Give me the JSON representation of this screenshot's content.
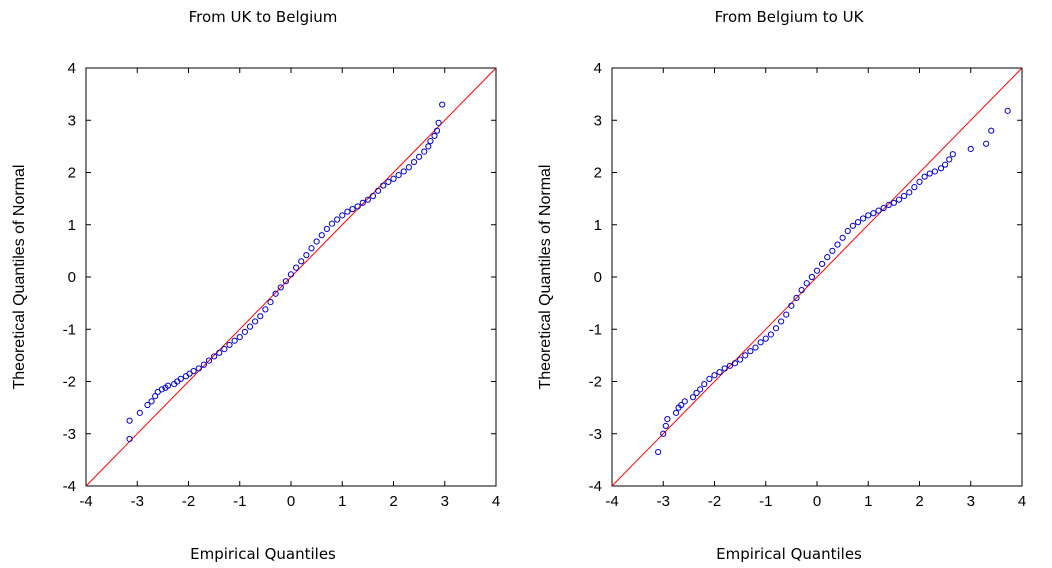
{
  "chart_data": [
    {
      "type": "scatter",
      "title": "From UK to Belgium",
      "xlabel": "Empirical Quantiles",
      "ylabel": "Theoretical Quantiles of Normal",
      "xlim": [
        -4,
        4
      ],
      "ylim": [
        -4,
        4
      ],
      "xticks": [
        "-4",
        "-3",
        "-2",
        "-1",
        "0",
        "1",
        "2",
        "3",
        "4"
      ],
      "yticks": [
        "-4",
        "-3",
        "-2",
        "-1",
        "0",
        "1",
        "2",
        "3",
        "4"
      ],
      "grid": false,
      "reference_line": {
        "from": [
          -4,
          -4
        ],
        "to": [
          4,
          4
        ],
        "color": "#ff0000"
      },
      "marker_color": "#0000cc",
      "points": [
        [
          -3.15,
          -3.1
        ],
        [
          -3.15,
          -2.75
        ],
        [
          -2.95,
          -2.6
        ],
        [
          -2.8,
          -2.45
        ],
        [
          -2.72,
          -2.38
        ],
        [
          -2.65,
          -2.28
        ],
        [
          -2.6,
          -2.2
        ],
        [
          -2.52,
          -2.15
        ],
        [
          -2.45,
          -2.12
        ],
        [
          -2.4,
          -2.08
        ],
        [
          -2.28,
          -2.05
        ],
        [
          -2.22,
          -2.0
        ],
        [
          -2.15,
          -1.95
        ],
        [
          -2.05,
          -1.9
        ],
        [
          -1.98,
          -1.85
        ],
        [
          -1.9,
          -1.8
        ],
        [
          -1.8,
          -1.75
        ],
        [
          -1.7,
          -1.68
        ],
        [
          -1.6,
          -1.6
        ],
        [
          -1.5,
          -1.52
        ],
        [
          -1.4,
          -1.45
        ],
        [
          -1.3,
          -1.38
        ],
        [
          -1.2,
          -1.3
        ],
        [
          -1.1,
          -1.22
        ],
        [
          -1.0,
          -1.15
        ],
        [
          -0.9,
          -1.05
        ],
        [
          -0.8,
          -0.95
        ],
        [
          -0.7,
          -0.85
        ],
        [
          -0.6,
          -0.75
        ],
        [
          -0.5,
          -0.62
        ],
        [
          -0.4,
          -0.48
        ],
        [
          -0.3,
          -0.32
        ],
        [
          -0.2,
          -0.2
        ],
        [
          -0.1,
          -0.08
        ],
        [
          0.0,
          0.05
        ],
        [
          0.1,
          0.18
        ],
        [
          0.2,
          0.3
        ],
        [
          0.3,
          0.42
        ],
        [
          0.4,
          0.55
        ],
        [
          0.5,
          0.68
        ],
        [
          0.6,
          0.8
        ],
        [
          0.7,
          0.92
        ],
        [
          0.8,
          1.02
        ],
        [
          0.9,
          1.1
        ],
        [
          1.0,
          1.18
        ],
        [
          1.1,
          1.25
        ],
        [
          1.2,
          1.3
        ],
        [
          1.3,
          1.35
        ],
        [
          1.4,
          1.42
        ],
        [
          1.5,
          1.48
        ],
        [
          1.6,
          1.55
        ],
        [
          1.7,
          1.65
        ],
        [
          1.8,
          1.75
        ],
        [
          1.9,
          1.82
        ],
        [
          2.0,
          1.88
        ],
        [
          2.1,
          1.95
        ],
        [
          2.2,
          2.02
        ],
        [
          2.3,
          2.1
        ],
        [
          2.4,
          2.2
        ],
        [
          2.5,
          2.3
        ],
        [
          2.6,
          2.4
        ],
        [
          2.68,
          2.5
        ],
        [
          2.72,
          2.6
        ],
        [
          2.8,
          2.7
        ],
        [
          2.85,
          2.8
        ],
        [
          2.88,
          2.95
        ],
        [
          2.95,
          3.3
        ]
      ]
    },
    {
      "type": "scatter",
      "title": "From Belgium to UK",
      "xlabel": "Empirical Quantiles",
      "ylabel": "Theoretical Quantiles of Normal",
      "xlim": [
        -4,
        4
      ],
      "ylim": [
        -4,
        4
      ],
      "xticks": [
        "-4",
        "-3",
        "-2",
        "-1",
        "0",
        "1",
        "2",
        "3",
        "4"
      ],
      "yticks": [
        "-4",
        "-3",
        "-2",
        "-1",
        "0",
        "1",
        "2",
        "3",
        "4"
      ],
      "grid": false,
      "reference_line": {
        "from": [
          -4,
          -4
        ],
        "to": [
          4,
          4
        ],
        "color": "#ff0000"
      },
      "marker_color": "#0000cc",
      "points": [
        [
          -3.1,
          -3.35
        ],
        [
          -3.0,
          -3.0
        ],
        [
          -2.95,
          -2.85
        ],
        [
          -2.92,
          -2.72
        ],
        [
          -2.75,
          -2.6
        ],
        [
          -2.7,
          -2.5
        ],
        [
          -2.65,
          -2.45
        ],
        [
          -2.58,
          -2.38
        ],
        [
          -2.42,
          -2.3
        ],
        [
          -2.35,
          -2.22
        ],
        [
          -2.28,
          -2.15
        ],
        [
          -2.2,
          -2.05
        ],
        [
          -2.1,
          -1.95
        ],
        [
          -2.0,
          -1.88
        ],
        [
          -1.9,
          -1.82
        ],
        [
          -1.8,
          -1.75
        ],
        [
          -1.7,
          -1.7
        ],
        [
          -1.6,
          -1.65
        ],
        [
          -1.5,
          -1.58
        ],
        [
          -1.4,
          -1.5
        ],
        [
          -1.3,
          -1.42
        ],
        [
          -1.2,
          -1.35
        ],
        [
          -1.1,
          -1.25
        ],
        [
          -1.0,
          -1.18
        ],
        [
          -0.9,
          -1.1
        ],
        [
          -0.8,
          -0.98
        ],
        [
          -0.7,
          -0.85
        ],
        [
          -0.6,
          -0.72
        ],
        [
          -0.5,
          -0.55
        ],
        [
          -0.4,
          -0.4
        ],
        [
          -0.3,
          -0.25
        ],
        [
          -0.2,
          -0.12
        ],
        [
          -0.1,
          0.0
        ],
        [
          0.0,
          0.12
        ],
        [
          0.1,
          0.25
        ],
        [
          0.2,
          0.38
        ],
        [
          0.3,
          0.5
        ],
        [
          0.4,
          0.62
        ],
        [
          0.5,
          0.75
        ],
        [
          0.6,
          0.88
        ],
        [
          0.7,
          0.98
        ],
        [
          0.8,
          1.05
        ],
        [
          0.9,
          1.12
        ],
        [
          1.0,
          1.18
        ],
        [
          1.1,
          1.22
        ],
        [
          1.2,
          1.27
        ],
        [
          1.3,
          1.32
        ],
        [
          1.4,
          1.38
        ],
        [
          1.5,
          1.42
        ],
        [
          1.6,
          1.48
        ],
        [
          1.7,
          1.55
        ],
        [
          1.8,
          1.62
        ],
        [
          1.9,
          1.72
        ],
        [
          2.0,
          1.82
        ],
        [
          2.1,
          1.92
        ],
        [
          2.2,
          1.98
        ],
        [
          2.3,
          2.02
        ],
        [
          2.42,
          2.08
        ],
        [
          2.5,
          2.15
        ],
        [
          2.58,
          2.25
        ],
        [
          2.65,
          2.35
        ],
        [
          3.0,
          2.45
        ],
        [
          3.3,
          2.55
        ],
        [
          3.4,
          2.8
        ],
        [
          3.72,
          3.18
        ]
      ]
    }
  ]
}
